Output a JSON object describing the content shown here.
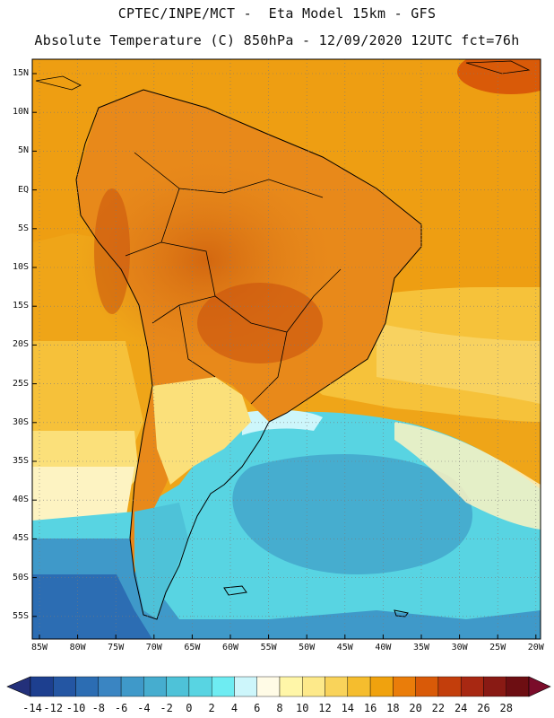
{
  "header": {
    "line1": "CPTEC/INPE/MCT -  Eta Model 15km - GFS",
    "line2": "Absolute Temperature (C) 850hPa - 12/09/2020 12UTC fct=76h"
  },
  "map": {
    "lat_labels": [
      "15N",
      "10N",
      "5N",
      "EQ",
      "5S",
      "10S",
      "15S",
      "20S",
      "25S",
      "30S",
      "35S",
      "40S",
      "45S",
      "50S",
      "55S"
    ],
    "lon_labels": [
      "85W",
      "80W",
      "75W",
      "70W",
      "65W",
      "60W",
      "55W",
      "50W",
      "45W",
      "40W",
      "35W",
      "30W",
      "25W",
      "20W"
    ]
  },
  "colorbar": {
    "labels": [
      "-14",
      "-12",
      "-10",
      "-8",
      "-6",
      "-4",
      "-2",
      "0",
      "2",
      "4",
      "6",
      "8",
      "10",
      "12",
      "14",
      "16",
      "18",
      "20",
      "22",
      "24",
      "26",
      "28"
    ],
    "colors": [
      "#1d3f8f",
      "#2456a3",
      "#2c6db3",
      "#3a85c2",
      "#3f99c9",
      "#46adcf",
      "#4ec2d8",
      "#58d4e2",
      "#6eecf2",
      "#cdf6fb",
      "#fffbe6",
      "#fff6a8",
      "#fde98a",
      "#f9d35a",
      "#f5bd2e",
      "#f0a20e",
      "#ea7d0a",
      "#d95a08",
      "#c33e0c",
      "#a82812",
      "#891a14",
      "#6d0e12"
    ],
    "low_color": "#23307a",
    "high_color": "#7a0c2a"
  }
}
